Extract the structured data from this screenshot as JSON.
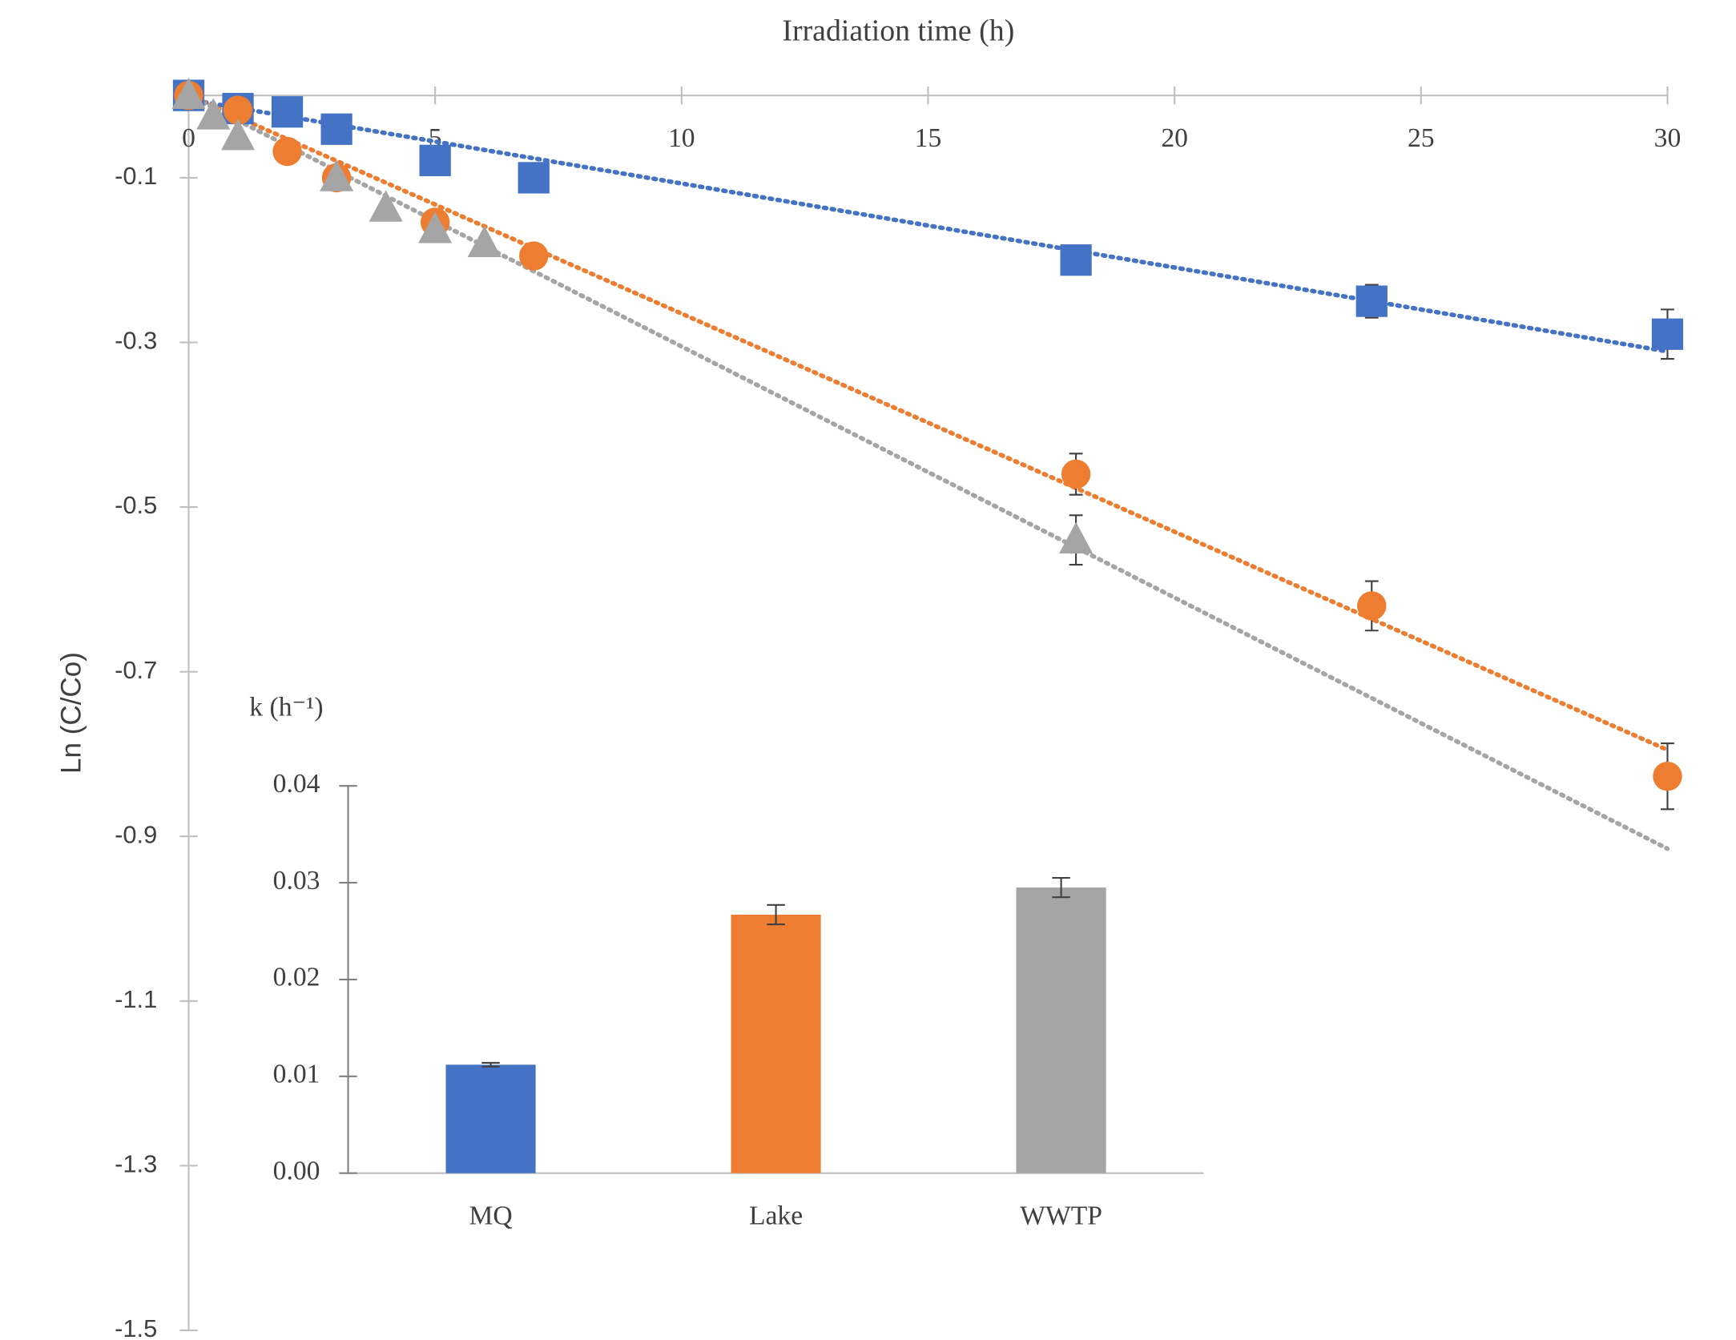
{
  "chart_data": [
    {
      "type": "scatter",
      "xlabel": "Irradiation time (h)",
      "ylabel": "Ln (C/Co)",
      "xlim": [
        0,
        30
      ],
      "xticks": [
        0,
        5,
        10,
        15,
        20,
        25,
        30
      ],
      "ylim": [
        -1.5,
        0
      ],
      "yticks": [
        -0.1,
        -0.3,
        -0.5,
        -0.7,
        -0.9,
        -1.1,
        -1.3,
        -1.5
      ],
      "grid": false,
      "series": [
        {
          "name": "MQ",
          "color": "#4472c4",
          "marker": "square",
          "x": [
            0,
            1,
            2,
            3,
            5,
            7,
            18,
            24,
            30
          ],
          "values": [
            0,
            -0.016,
            -0.02,
            -0.041,
            -0.079,
            -0.1,
            -0.2,
            -0.25,
            -0.29
          ],
          "errors": [
            null,
            null,
            null,
            null,
            null,
            null,
            0.015,
            0.02,
            0.03
          ],
          "trendline": {
            "slope": -0.0102,
            "intercept": -0.005
          }
        },
        {
          "name": "Lake",
          "color": "#ed7d31",
          "marker": "circle",
          "x": [
            0,
            1,
            2,
            3,
            5,
            7,
            18,
            24,
            30
          ],
          "values": [
            0,
            -0.018,
            -0.068,
            -0.1,
            -0.154,
            -0.195,
            -0.46,
            -0.62,
            -0.827
          ],
          "errors": [
            null,
            null,
            null,
            null,
            null,
            null,
            0.025,
            0.03,
            0.04
          ],
          "trendline": {
            "slope": -0.0265,
            "intercept": 0
          }
        },
        {
          "name": "WWTP",
          "color": "#a5a5a5",
          "marker": "triangle",
          "x": [
            0,
            0.5,
            1,
            3,
            4,
            5,
            6,
            18
          ],
          "values": [
            0,
            -0.025,
            -0.05,
            -0.1,
            -0.137,
            -0.163,
            -0.18,
            -0.54
          ],
          "errors": [
            null,
            null,
            null,
            null,
            null,
            null,
            null,
            0.03
          ],
          "trendline": {
            "slope": -0.0305,
            "intercept": 0
          }
        }
      ]
    },
    {
      "type": "bar",
      "ylabel": "k (h⁻¹)",
      "categories": [
        "MQ",
        "Lake",
        "WWTP"
      ],
      "values": [
        0.0112,
        0.0267,
        0.0295
      ],
      "errors": [
        0.0002,
        0.001,
        0.001
      ],
      "colors": [
        "#4472c4",
        "#ed7d31",
        "#a5a5a5"
      ],
      "ylim": [
        0,
        0.04
      ],
      "yticks": [
        {
          "value": 0,
          "label": "0.00"
        },
        0.01,
        0.02,
        0.03,
        0.04
      ]
    }
  ]
}
